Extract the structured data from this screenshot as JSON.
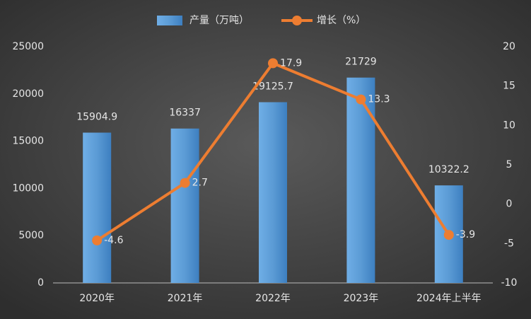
{
  "chart_data": {
    "type": "bar",
    "categories": [
      "2020年",
      "2021年",
      "2022年",
      "2023年",
      "2024年上半年"
    ],
    "series": [
      {
        "name": "产量（万吨）",
        "color": "#5b9bd5",
        "type": "bar",
        "values": [
          15904.9,
          16337,
          19125.7,
          21729,
          10322.2
        ]
      },
      {
        "name": "增长（%）",
        "color": "#ed7d31",
        "type": "line",
        "axis": "y2",
        "values": [
          -4.6,
          2.7,
          17.9,
          13.3,
          -3.9
        ]
      }
    ],
    "ylim": [
      0,
      25000
    ],
    "yticks": [
      0,
      5000,
      10000,
      15000,
      20000,
      25000
    ],
    "y2lim": [
      -10,
      20
    ],
    "y2ticks": [
      -10,
      -5,
      0,
      5,
      10,
      15,
      20
    ],
    "grid": false,
    "legend": "top"
  }
}
